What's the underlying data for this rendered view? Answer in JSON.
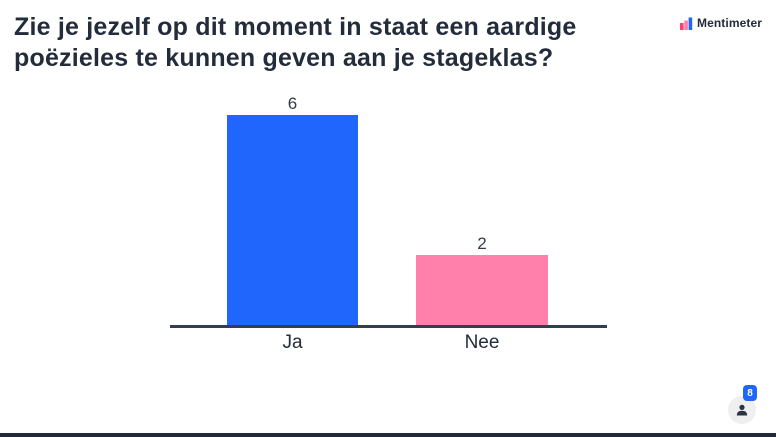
{
  "header": {
    "title": "Zie je jezelf op dit moment in staat een aardige poëzieles te kunnen geven aan je stageklas?",
    "brand": "Mentimeter"
  },
  "chart_data": {
    "type": "bar",
    "title": "Zie je jezelf op dit moment in staat een aardige poëzieles te kunnen geven aan je stageklas?",
    "categories": [
      "Ja",
      "Nee"
    ],
    "values": [
      6,
      2
    ],
    "bar_colors": [
      "#2066fd",
      "#ff80ab"
    ],
    "value_labels": [
      "6",
      "2"
    ],
    "xlabel": "",
    "ylabel": "",
    "ylim": [
      0,
      6
    ],
    "grid": false,
    "legend": "none",
    "value_labels_shown": true
  },
  "participants": {
    "count": "8"
  },
  "colors": {
    "accent_blue": "#2066fd",
    "accent_pink": "#ff80ab",
    "text_dark": "#222c3a",
    "axis_line": "#333e4e",
    "badge_blue": "#2166fb",
    "circle_gray": "#efefef",
    "bottom_bar": "#1f2a3a"
  }
}
